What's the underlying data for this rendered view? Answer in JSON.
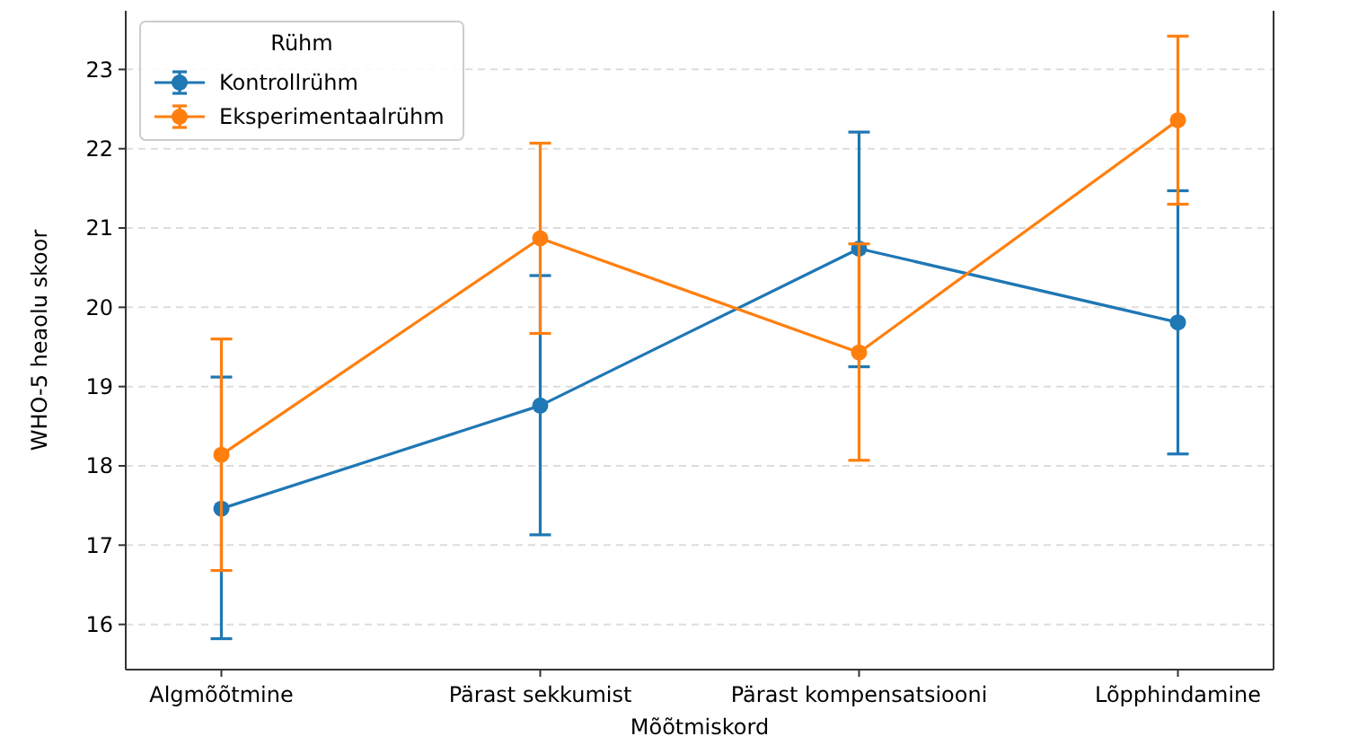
{
  "chart_data": {
    "type": "line",
    "xlabel": "Mõõtmiskord",
    "ylabel": "WHO-5 heaolu skoor",
    "legend_title": "Rühm",
    "categories": [
      "Algmõõtmine",
      "Pärast sekkumist",
      "Pärast kompensatsiooni",
      "Lõpphindamine"
    ],
    "series": [
      {
        "name": "Kontrollrühm",
        "color": "#1f77b4",
        "values": [
          17.46,
          18.76,
          20.74,
          19.81
        ],
        "errors": [
          [
            15.82,
            19.12
          ],
          [
            17.13,
            20.4
          ],
          [
            19.25,
            22.21
          ],
          [
            18.15,
            21.47
          ]
        ]
      },
      {
        "name": "Eksperimentaalrühm",
        "color": "#ff7f0e",
        "values": [
          18.14,
          20.87,
          19.43,
          22.36
        ],
        "errors": [
          [
            16.68,
            19.6
          ],
          [
            19.67,
            22.07
          ],
          [
            18.07,
            20.8
          ],
          [
            21.3,
            23.42
          ]
        ]
      }
    ],
    "ylim": [
      15.43,
      23.74
    ],
    "yticks": [
      16,
      17,
      18,
      19,
      20,
      21,
      22,
      23
    ],
    "grid": "y",
    "legend": "top left",
    "marker": "circle",
    "line_style": "solid"
  }
}
